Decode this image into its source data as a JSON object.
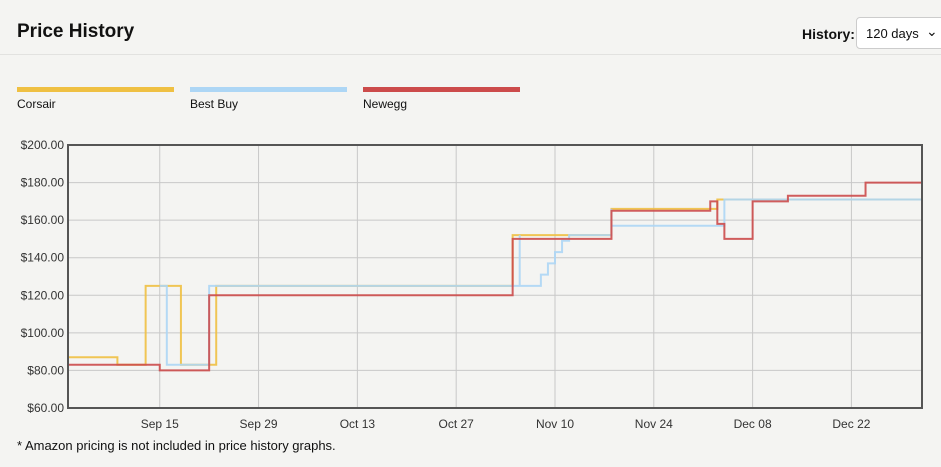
{
  "header": {
    "title": "Price History",
    "history_label": "History:",
    "history_value": "120 days"
  },
  "footnote": "* Amazon pricing is not included in price history graphs.",
  "chart_data": {
    "type": "line",
    "step": true,
    "title": "",
    "xlabel": "",
    "ylabel": "",
    "grid": true,
    "legend_position": "top-left",
    "xlim": [
      "Sep 02",
      "Jan 01"
    ],
    "ylim": [
      60,
      200
    ],
    "y_ticks": [
      "$60.00",
      "$80.00",
      "$100.00",
      "$120.00",
      "$140.00",
      "$160.00",
      "$180.00",
      "$200.00"
    ],
    "y_tick_values": [
      60,
      80,
      100,
      120,
      140,
      160,
      180,
      200
    ],
    "x_ticks": [
      "Sep 15",
      "Sep 29",
      "Oct 13",
      "Oct 27",
      "Nov 10",
      "Nov 24",
      "Dec 08",
      "Dec 22"
    ],
    "series": [
      {
        "name": "Corsair",
        "color": "#efc043",
        "points": [
          [
            "Sep 02",
            87
          ],
          [
            "Sep 09",
            83
          ],
          [
            "Sep 13",
            125
          ],
          [
            "Sep 18",
            83
          ],
          [
            "Sep 23",
            125
          ],
          [
            "Nov 04",
            152
          ],
          [
            "Nov 18",
            166
          ],
          [
            "Dec 03",
            171
          ]
        ]
      },
      {
        "name": "Best Buy",
        "color": "#add6f5",
        "points": [
          [
            "Sep 15",
            125
          ],
          [
            "Sep 16",
            83
          ],
          [
            "Sep 22",
            125
          ],
          [
            "Nov 05",
            152
          ],
          [
            "Nov 05",
            125
          ],
          [
            "Nov 08",
            131
          ],
          [
            "Nov 09",
            137
          ],
          [
            "Nov 10",
            143
          ],
          [
            "Nov 11",
            149
          ],
          [
            "Nov 12",
            152
          ],
          [
            "Nov 18",
            166
          ],
          [
            "Nov 18",
            157
          ],
          [
            "Dec 04",
            171
          ]
        ]
      },
      {
        "name": "Newegg",
        "color": "#cc4b4b",
        "points": [
          [
            "Sep 02",
            83
          ],
          [
            "Sep 15",
            80
          ],
          [
            "Sep 22",
            120
          ],
          [
            "Nov 04",
            150
          ],
          [
            "Nov 18",
            165
          ],
          [
            "Dec 02",
            170
          ],
          [
            "Dec 03",
            158
          ],
          [
            "Dec 04",
            150
          ],
          [
            "Dec 08",
            170
          ],
          [
            "Dec 13",
            173
          ],
          [
            "Dec 24",
            180
          ]
        ]
      }
    ]
  }
}
